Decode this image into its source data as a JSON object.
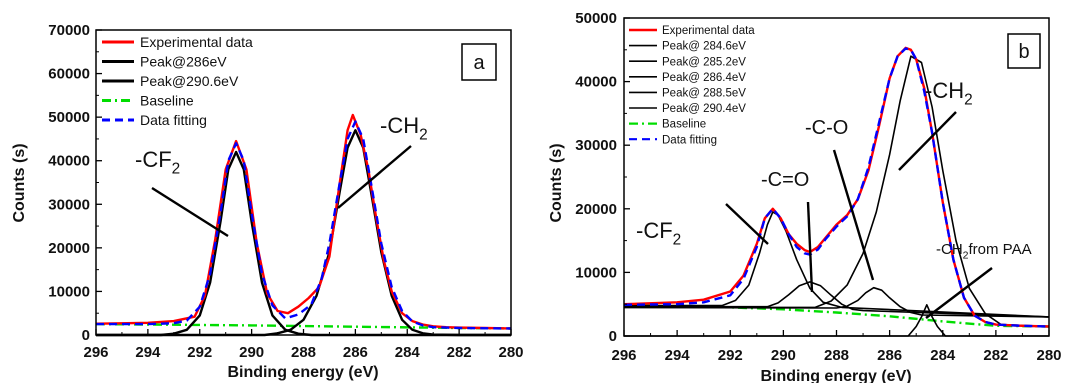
{
  "chart_data": [
    {
      "type": "line",
      "panel_label": "a",
      "xlabel": "Binding energy (eV)",
      "ylabel": "Counts (s)",
      "xlim": [
        296,
        280
      ],
      "ylim": [
        0,
        70000
      ],
      "x_reversed": true,
      "xticks": [
        296,
        294,
        292,
        290,
        288,
        286,
        284,
        282,
        280
      ],
      "yticks": [
        0,
        10000,
        20000,
        30000,
        40000,
        50000,
        60000,
        70000
      ],
      "legend_position": "top-left",
      "series": [
        {
          "name": "Experimental data",
          "color": "#ff0000",
          "style": "solid",
          "x": [
            296,
            294,
            293,
            292.2,
            291.8,
            291.4,
            291,
            290.6,
            290.2,
            289.8,
            289.4,
            289,
            288.6,
            288.2,
            287.8,
            287.4,
            287,
            286.6,
            286.3,
            286.1,
            285.8,
            285.5,
            285.2,
            284.9,
            284.6,
            284.2,
            283.8,
            283.4,
            283,
            282.5,
            282,
            281,
            280
          ],
          "y": [
            2600,
            2800,
            3200,
            4200,
            9000,
            22000,
            38000,
            44500,
            38000,
            21000,
            9500,
            5500,
            5000,
            6500,
            8500,
            11000,
            18000,
            35000,
            47000,
            50500,
            46000,
            38000,
            27000,
            17000,
            10000,
            5000,
            3200,
            2400,
            2000,
            1800,
            1700,
            1600,
            1500
          ]
        },
        {
          "name": "Peak@286eV",
          "color": "#000000",
          "style": "solid",
          "x": [
            296,
            289.5,
            289,
            288.5,
            288,
            287.5,
            287,
            286.6,
            286.3,
            286,
            285.7,
            285.4,
            285,
            284.6,
            284.2,
            283.8,
            283.4,
            283,
            282,
            280
          ],
          "y": [
            0,
            0,
            400,
            1200,
            3500,
            9000,
            19000,
            33000,
            43000,
            47000,
            43000,
            33000,
            19000,
            9000,
            3500,
            1200,
            400,
            100,
            0,
            0
          ]
        },
        {
          "name": "Peak@290.6eV",
          "color": "#000000",
          "style": "solid",
          "x": [
            296,
            293.5,
            293,
            292.5,
            292,
            291.6,
            291.2,
            290.9,
            290.6,
            290.3,
            290,
            289.6,
            289.2,
            288.7,
            288.2,
            287.7,
            280
          ],
          "y": [
            0,
            0,
            300,
            1200,
            4500,
            12000,
            26000,
            38000,
            42000,
            38000,
            26000,
            12000,
            4500,
            1200,
            300,
            0,
            0
          ]
        },
        {
          "name": "Baseline",
          "color": "#00dd00",
          "style": "dash-dot",
          "x": [
            296,
            290,
            286,
            282,
            280
          ],
          "y": [
            2500,
            2200,
            1900,
            1600,
            1500
          ]
        },
        {
          "name": "Data fitting",
          "color": "#0000ff",
          "style": "dashed",
          "x": [
            296,
            294,
            293,
            292.5,
            292,
            291.6,
            291.2,
            290.9,
            290.6,
            290.3,
            290,
            289.6,
            289.2,
            288.7,
            288.2,
            287.7,
            287.3,
            287,
            286.6,
            286.3,
            286,
            285.7,
            285.4,
            285,
            284.6,
            284.2,
            283.8,
            283.4,
            283,
            282,
            280
          ],
          "y": [
            2500,
            2500,
            2700,
            3300,
            6500,
            14000,
            28000,
            40000,
            44000,
            40000,
            28000,
            14000,
            6800,
            3800,
            4700,
            7000,
            13000,
            21000,
            35000,
            45000,
            49000,
            45000,
            35000,
            21000,
            11000,
            5500,
            3100,
            2200,
            1800,
            1600,
            1500
          ]
        }
      ],
      "annotations": [
        {
          "text": "-CF",
          "sub": "2"
        },
        {
          "text": "-CH",
          "sub": "2"
        }
      ]
    },
    {
      "type": "line",
      "panel_label": "b",
      "xlabel": "Binding energy (eV)",
      "ylabel": "Counts (s)",
      "xlim": [
        296,
        280
      ],
      "ylim": [
        0,
        50000
      ],
      "x_reversed": true,
      "xticks": [
        296,
        294,
        292,
        290,
        288,
        286,
        284,
        282,
        280
      ],
      "yticks": [
        0,
        10000,
        20000,
        30000,
        40000,
        50000
      ],
      "legend_position": "top-left",
      "series": [
        {
          "name": "Experimental data",
          "color": "#ff0000",
          "style": "solid",
          "x": [
            296,
            294,
            293,
            292,
            291.5,
            291,
            290.7,
            290.4,
            290.1,
            289.8,
            289.5,
            289.2,
            289,
            288.7,
            288.4,
            288,
            287.6,
            287.2,
            286.8,
            286.4,
            286,
            285.7,
            285.4,
            285.2,
            285,
            284.7,
            284.4,
            284,
            283.6,
            283.2,
            282.8,
            282.4,
            282,
            281,
            280
          ],
          "y": [
            5000,
            5300,
            5700,
            7000,
            9500,
            14500,
            18500,
            20000,
            18500,
            16000,
            14500,
            13500,
            13200,
            14000,
            15500,
            17500,
            19000,
            21500,
            26000,
            33000,
            40500,
            44000,
            45300,
            45000,
            43500,
            39000,
            32000,
            21000,
            12000,
            6000,
            3200,
            2200,
            1800,
            1600,
            1500
          ]
        },
        {
          "name": "Peak@ 284.6eV",
          "color": "#000000",
          "style": "solid",
          "x": [
            296,
            285.3,
            285,
            284.8,
            284.6,
            284.4,
            284.2,
            283.9,
            280
          ],
          "y": [
            0,
            0,
            1500,
            3000,
            4900,
            3000,
            1500,
            0,
            0
          ]
        },
        {
          "name": "Peak@ 285.2eV",
          "color": "#000000",
          "style": "solid",
          "x": [
            296,
            288.8,
            288.2,
            287.6,
            287,
            286.5,
            286,
            285.6,
            285.2,
            284.8,
            284.4,
            284,
            283.5,
            283,
            282.4,
            281.8,
            280
          ],
          "y": [
            4500,
            4500,
            5500,
            8000,
            13000,
            19500,
            28500,
            37000,
            44000,
            43000,
            36000,
            26000,
            15000,
            7500,
            3500,
            1800,
            1500
          ]
        },
        {
          "name": "Peak@ 286.4eV",
          "color": "#000000",
          "style": "solid",
          "x": [
            296,
            288,
            287.6,
            287.2,
            286.9,
            286.6,
            286.3,
            286,
            285.6,
            285.2,
            284.8,
            280
          ],
          "y": [
            4500,
            4400,
            4700,
            5600,
            6800,
            7600,
            7200,
            6000,
            4600,
            3700,
            3300,
            3000
          ]
        },
        {
          "name": "Peak@ 288.5eV",
          "color": "#000000",
          "style": "solid",
          "x": [
            296,
            290.6,
            290.2,
            289.8,
            289.4,
            289,
            288.6,
            288.2,
            287.8,
            287.4,
            287,
            280
          ],
          "y": [
            4600,
            4600,
            5200,
            6500,
            7900,
            8500,
            7900,
            6400,
            5000,
            4200,
            4000,
            3000
          ]
        },
        {
          "name": "Peak@ 290.4eV",
          "color": "#000000",
          "style": "solid",
          "x": [
            296,
            292.3,
            291.8,
            291.3,
            290.9,
            290.6,
            290.4,
            290.2,
            289.9,
            289.5,
            289,
            288.5,
            287.8,
            280
          ],
          "y": [
            4800,
            4800,
            5600,
            8000,
            13000,
            17500,
            19500,
            19000,
            16500,
            12000,
            7500,
            5300,
            4500,
            3000
          ]
        },
        {
          "name": "Baseline",
          "color": "#00dd00",
          "style": "dash-dot",
          "x": [
            296,
            292,
            290,
            288,
            286,
            284,
            282,
            280
          ],
          "y": [
            4800,
            4500,
            4200,
            3700,
            3100,
            2300,
            1600,
            1500
          ]
        },
        {
          "name": "Data fitting",
          "color": "#0000ff",
          "style": "dashed",
          "x": [
            296,
            294,
            293,
            292,
            291.5,
            291,
            290.7,
            290.4,
            290.1,
            289.8,
            289.5,
            289.2,
            289,
            288.7,
            288.4,
            288,
            287.6,
            287.2,
            286.8,
            286.4,
            286,
            285.7,
            285.4,
            285.2,
            285,
            284.7,
            284.4,
            284,
            283.6,
            283.2,
            282.8,
            282.4,
            282,
            281,
            280
          ],
          "y": [
            4900,
            5000,
            5300,
            6400,
            9000,
            14000,
            18500,
            20000,
            18500,
            16000,
            14000,
            13000,
            12800,
            13600,
            15300,
            17200,
            18800,
            21500,
            26500,
            33500,
            40500,
            44000,
            45200,
            45000,
            43500,
            38500,
            32000,
            21000,
            12000,
            6000,
            3200,
            2200,
            1800,
            1600,
            1500
          ]
        }
      ],
      "annotations": [
        {
          "text": "-CF",
          "sub": "2"
        },
        {
          "text": "-C=O",
          "sub": ""
        },
        {
          "text": "-C-O",
          "sub": ""
        },
        {
          "text": "-CH",
          "sub": "2"
        },
        {
          "text": "-CH",
          "sub": "2",
          "tail": "from PAA"
        }
      ]
    }
  ]
}
